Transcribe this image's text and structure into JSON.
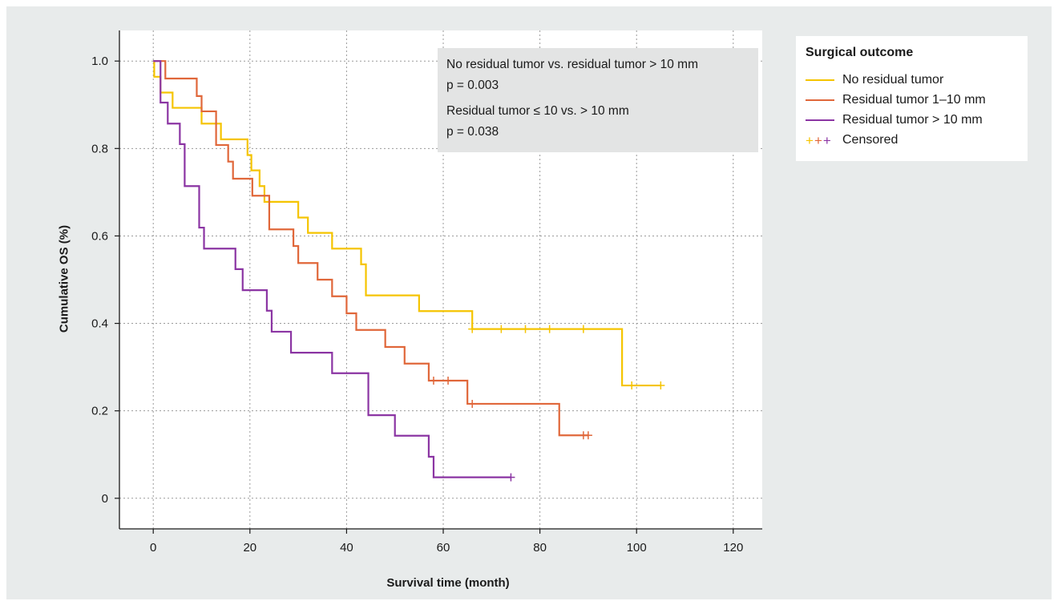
{
  "chart_data": {
    "type": "line",
    "subtype": "kaplan-meier",
    "xlabel": "Survival time (month)",
    "ylabel": "Cumulative OS (%)",
    "xlim": [
      -7,
      126
    ],
    "ylim": [
      -0.07,
      1.07
    ],
    "xticks": [
      0,
      20,
      40,
      60,
      80,
      100,
      120
    ],
    "yticks": [
      0,
      0.2,
      0.4,
      0.6,
      0.8,
      1.0
    ],
    "xtick_labels": [
      "0",
      "20",
      "40",
      "60",
      "80",
      "100",
      "120"
    ],
    "ytick_labels": [
      "0",
      "0.2",
      "0.4",
      "0.6",
      "0.8",
      "1.0"
    ],
    "grid": true,
    "legend": {
      "title": "Surgical outcome",
      "placement": "outside-right-top",
      "censored_label": "Censored",
      "censored_symbol": "+"
    },
    "annotation": {
      "line1": "No residual tumor vs. residual tumor > 10 mm",
      "line2": "p = 0.003",
      "line3": "Residual tumor ≤ 10 vs. > 10 mm",
      "line4": "p = 0.038"
    },
    "series": [
      {
        "name": "No residual tumor",
        "color": "#f5c400",
        "steps": [
          [
            0,
            1.0
          ],
          [
            0.2,
            0.964
          ],
          [
            1.5,
            0.928
          ],
          [
            4,
            0.893
          ],
          [
            10,
            0.857
          ],
          [
            14,
            0.821
          ],
          [
            19.5,
            0.785
          ],
          [
            20.3,
            0.75
          ],
          [
            22,
            0.714
          ],
          [
            23,
            0.678
          ],
          [
            30,
            0.642
          ],
          [
            32,
            0.607
          ],
          [
            37,
            0.571
          ],
          [
            43,
            0.535
          ],
          [
            44,
            0.464
          ],
          [
            55,
            0.428
          ],
          [
            66,
            0.387
          ],
          [
            97,
            0.258
          ],
          [
            105,
            0.258
          ]
        ],
        "censored": [
          [
            66,
            0.387
          ],
          [
            72,
            0.387
          ],
          [
            77,
            0.387
          ],
          [
            82,
            0.387
          ],
          [
            89,
            0.387
          ],
          [
            99,
            0.258
          ],
          [
            105,
            0.258
          ]
        ]
      },
      {
        "name": "Residual tumor 1–10 mm",
        "color": "#e0673a",
        "steps": [
          [
            0,
            1.0
          ],
          [
            2.5,
            0.96
          ],
          [
            9,
            0.92
          ],
          [
            10,
            0.885
          ],
          [
            13,
            0.808
          ],
          [
            15.5,
            0.77
          ],
          [
            16.5,
            0.731
          ],
          [
            20.5,
            0.692
          ],
          [
            24,
            0.615
          ],
          [
            29,
            0.577
          ],
          [
            30,
            0.538
          ],
          [
            34,
            0.5
          ],
          [
            37,
            0.462
          ],
          [
            40,
            0.423
          ],
          [
            42,
            0.385
          ],
          [
            48,
            0.346
          ],
          [
            52,
            0.308
          ],
          [
            57,
            0.269
          ],
          [
            65,
            0.216
          ],
          [
            84,
            0.144
          ],
          [
            90,
            0.144
          ]
        ],
        "censored": [
          [
            58,
            0.269
          ],
          [
            61,
            0.269
          ],
          [
            66,
            0.216
          ],
          [
            89,
            0.144
          ],
          [
            90,
            0.144
          ]
        ]
      },
      {
        "name": "Residual tumor > 10 mm",
        "color": "#8b35a3",
        "steps": [
          [
            0,
            1.0
          ],
          [
            1.5,
            0.905
          ],
          [
            3,
            0.857
          ],
          [
            5.5,
            0.81
          ],
          [
            6.5,
            0.714
          ],
          [
            9.5,
            0.619
          ],
          [
            10.5,
            0.571
          ],
          [
            17,
            0.524
          ],
          [
            18.5,
            0.476
          ],
          [
            23.5,
            0.429
          ],
          [
            24.5,
            0.381
          ],
          [
            28.5,
            0.333
          ],
          [
            37,
            0.286
          ],
          [
            44.5,
            0.19
          ],
          [
            50,
            0.143
          ],
          [
            57,
            0.095
          ],
          [
            58,
            0.048
          ],
          [
            74,
            0.048
          ]
        ],
        "censored": [
          [
            74,
            0.048
          ]
        ]
      }
    ]
  }
}
